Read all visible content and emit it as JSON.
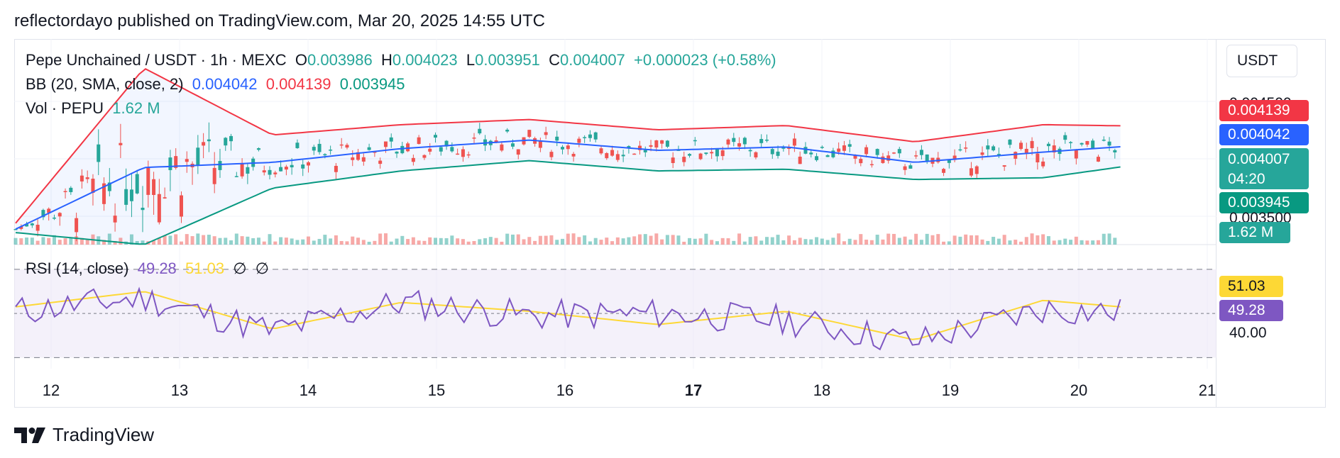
{
  "header": {
    "text": "reflectordayo published on TradingView.com, Mar 20, 2025 14:55 UTC"
  },
  "currency": "USDT",
  "legend": {
    "symbol": "Pepe Unchained / USDT · 1h · MEXC",
    "o_label": "O",
    "o_value": "0.003986",
    "h_label": "H",
    "h_value": "0.004023",
    "l_label": "L",
    "l_value": "0.003951",
    "c_label": "C",
    "c_value": "0.004007",
    "change": "+0.000023 (+0.58%)",
    "bb_label": "BB (20, SMA, close, 2)",
    "bb_basis": "0.004042",
    "bb_upper": "0.004139",
    "bb_lower": "0.003945",
    "vol_label": "Vol · PEPU",
    "vol_value": "1.62 M",
    "rsi_label": "RSI (14, close)",
    "rsi_value": "49.28",
    "rsi_ma": "51.03",
    "rsi_na1": "∅",
    "rsi_na2": "∅"
  },
  "price_scale": {
    "partial_top": "0.004500",
    "upper_tag": "0.004139",
    "basis_tag": "0.004042",
    "last_price": "0.004007",
    "countdown": "04:20",
    "lower_tag": "0.003945",
    "partial_bottom": "0.003500",
    "volume_tag": "1.62 M"
  },
  "rsi_scale": {
    "ma_tag": "51.03",
    "rsi_tag": "49.28",
    "level_40": "40.00"
  },
  "x_axis": {
    "ticks": [
      "12",
      "13",
      "14",
      "15",
      "16",
      "17",
      "18",
      "19",
      "20",
      "21"
    ],
    "bold_tick": "17"
  },
  "footer": {
    "brand": "TradingView"
  },
  "colors": {
    "up": "#26a69a",
    "down": "#ef5350",
    "bb_basis": "#2962ff",
    "bb_upper": "#f23645",
    "bb_lower": "#089981",
    "rsi": "#7e57c2",
    "rsi_ma": "#fdd835",
    "rsi_fill": "#ede7f6"
  },
  "chart_data": [
    {
      "type": "line",
      "title": "Pepe Unchained / USDT · 1h · MEXC",
      "x": [
        "12",
        "13",
        "14",
        "15",
        "16",
        "17",
        "18",
        "19",
        "20",
        "21"
      ],
      "series": [
        {
          "name": "BB upper",
          "values": [
            0.003575,
            0.00448,
            0.00409,
            0.00415,
            0.00418,
            0.00412,
            0.004145,
            0.00405,
            0.00415,
            0.004139
          ]
        },
        {
          "name": "BB basis",
          "values": [
            0.00354,
            0.0039,
            0.00393,
            0.00401,
            0.00406,
            0.004,
            0.00402,
            0.00393,
            0.00399,
            0.004042
          ]
        },
        {
          "name": "BB lower",
          "values": [
            0.00352,
            0.00345,
            0.00378,
            0.00388,
            0.00394,
            0.00388,
            0.00389,
            0.00383,
            0.00384,
            0.003945
          ]
        }
      ],
      "ylim": [
        0.00345,
        0.00465
      ]
    },
    {
      "type": "line",
      "title": "RSI (14, close)",
      "x": [
        "12",
        "13",
        "14",
        "15",
        "16",
        "17",
        "18",
        "19",
        "20",
        "21"
      ],
      "series": [
        {
          "name": "RSI",
          "values": [
            51,
            57,
            42,
            55,
            49,
            50,
            47,
            37,
            52,
            49.28
          ]
        },
        {
          "name": "RSI MA",
          "values": [
            53,
            60,
            43,
            55,
            51,
            45,
            51,
            38,
            56,
            51.03
          ]
        }
      ],
      "ylim": [
        25,
        78
      ],
      "bands": [
        30,
        50,
        70
      ]
    }
  ]
}
